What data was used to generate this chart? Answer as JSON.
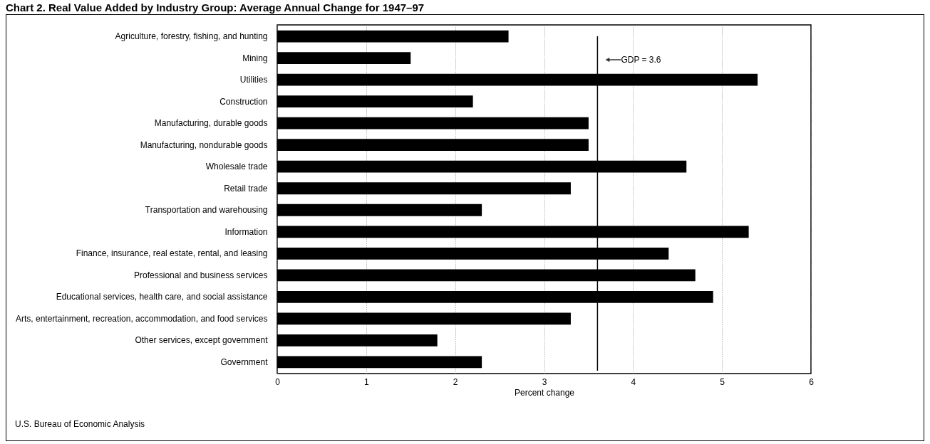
{
  "chart_data": {
    "type": "bar",
    "orientation": "horizontal",
    "title": "Chart 2. Real Value Added by Industry Group: Average Annual Change for 1947–97",
    "categories": [
      "Agriculture, forestry, fishing, and hunting",
      "Mining",
      "Utilities",
      "Construction",
      "Manufacturing, durable goods",
      "Manufacturing, nondurable goods",
      "Wholesale trade",
      "Retail trade",
      "Transportation and warehousing",
      "Information",
      "Finance, insurance, real estate, rental, and leasing",
      "Professional and business services",
      "Educational services, health care, and social assistance",
      "Arts, entertainment, recreation, accommodation, and food services",
      "Other services, except government",
      "Government"
    ],
    "values": [
      2.6,
      1.5,
      5.4,
      2.2,
      3.5,
      3.5,
      4.6,
      3.3,
      2.3,
      5.3,
      4.4,
      4.7,
      4.9,
      3.3,
      1.8,
      2.3
    ],
    "color": "#000000",
    "xlim": [
      0,
      6
    ],
    "xticks": [
      0,
      1,
      2,
      3,
      4,
      5,
      6
    ],
    "xlabel": "Percent change",
    "grid": "x",
    "ref_lines": [
      {
        "axis": "x",
        "value": 3.6,
        "label": "GDP = 3.6",
        "color": "#000000"
      }
    ],
    "annotations": [
      "U.S. Bureau of Economic Analysis"
    ]
  }
}
